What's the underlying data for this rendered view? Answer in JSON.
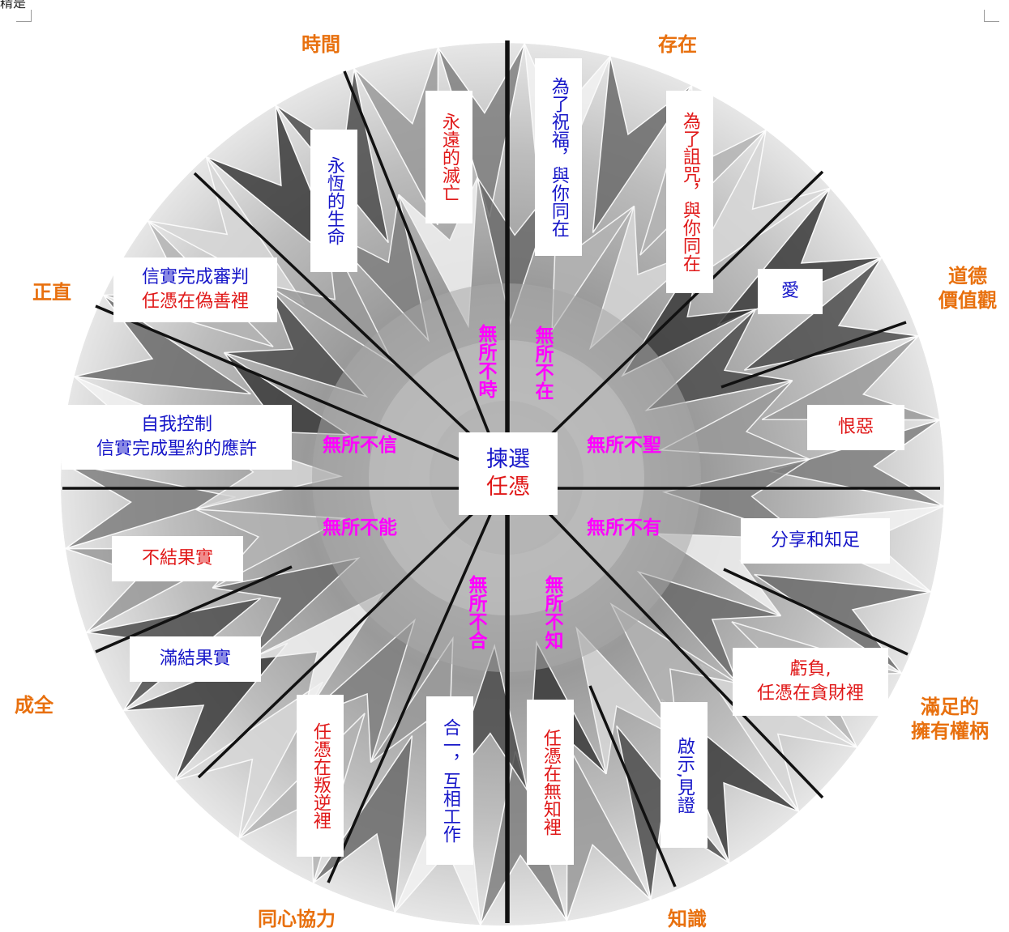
{
  "top_fragment": "精是",
  "outer_labels": {
    "time": "時間",
    "existence": "存在",
    "morality": [
      "道德",
      "價值觀"
    ],
    "contentment": [
      "滿足的",
      "擁有權柄"
    ],
    "knowledge": "知識",
    "unity": "同心協力",
    "fulfillment": "成全",
    "integrity": "正直"
  },
  "center": {
    "line1": "揀選",
    "line2": "任憑"
  },
  "attributes": {
    "omnitemporal": "無所不時",
    "omnipresent": "無所不在",
    "omnifaithful": "無所不信",
    "omniholy": "無所不聖",
    "omnipotent": "無所不能",
    "omnipossessing": "無所不有",
    "omniunited": "無所不合",
    "omniscient": "無所不知"
  },
  "boxes": {
    "eternal_life": "永恆的生命",
    "eternal_destruction": "永遠的滅亡",
    "bless_with_you": "為了祝福，與你同在",
    "curse_with_you": "為了詛咒，與你同在",
    "love": "愛",
    "hate": "恨惡",
    "share_content": "分享和知足",
    "lack": [
      "虧負,",
      "任憑在貪財裡"
    ],
    "revelation": "啟示,見證",
    "left_in_ignorance": "任憑在無知裡",
    "work_together": "合一，互相工作",
    "left_in_rebellion": "任憑在叛逆裡",
    "full_fruit": "滿結果實",
    "no_fruit": "不結果實",
    "self_control": [
      "自我控制",
      "信實完成聖約的應許"
    ],
    "judgment": [
      "信實完成審判",
      "任憑在偽善裡"
    ]
  },
  "colors": {
    "outer": "#e8700e",
    "attribute": "#ff00ff",
    "blue": "#1616c8",
    "red": "#e01818"
  }
}
